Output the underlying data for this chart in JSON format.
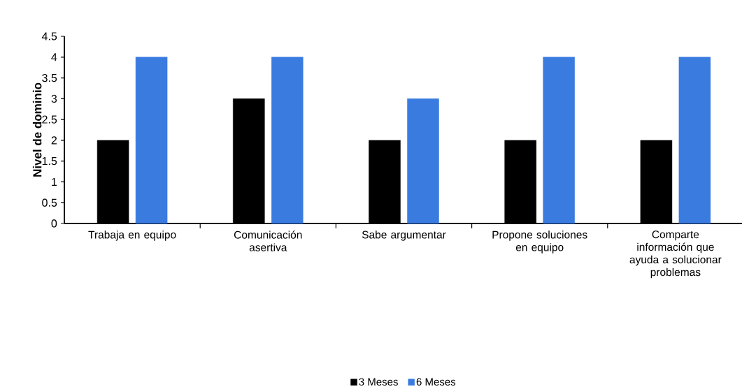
{
  "chart_data": {
    "type": "bar",
    "ylabel": "Nivel de dominio",
    "categories": [
      "Trabaja en equipo",
      "Comunicación asertiva",
      "Sabe argumentar",
      "Propone soluciones en equipo",
      "Comparte información que ayuda a solucionar problemas"
    ],
    "series": [
      {
        "name": "3 Meses",
        "color": "#000000",
        "values": [
          2,
          3,
          2,
          2,
          2
        ]
      },
      {
        "name": "6 Meses",
        "color": "#3a7be0",
        "values": [
          4,
          4,
          3,
          4,
          4
        ]
      }
    ],
    "ylim": [
      0,
      4.5
    ],
    "yticks": [
      0,
      0.5,
      1,
      1.5,
      2,
      2.5,
      3,
      3.5,
      4,
      4.5
    ],
    "grid": false,
    "legend": "bottom"
  }
}
